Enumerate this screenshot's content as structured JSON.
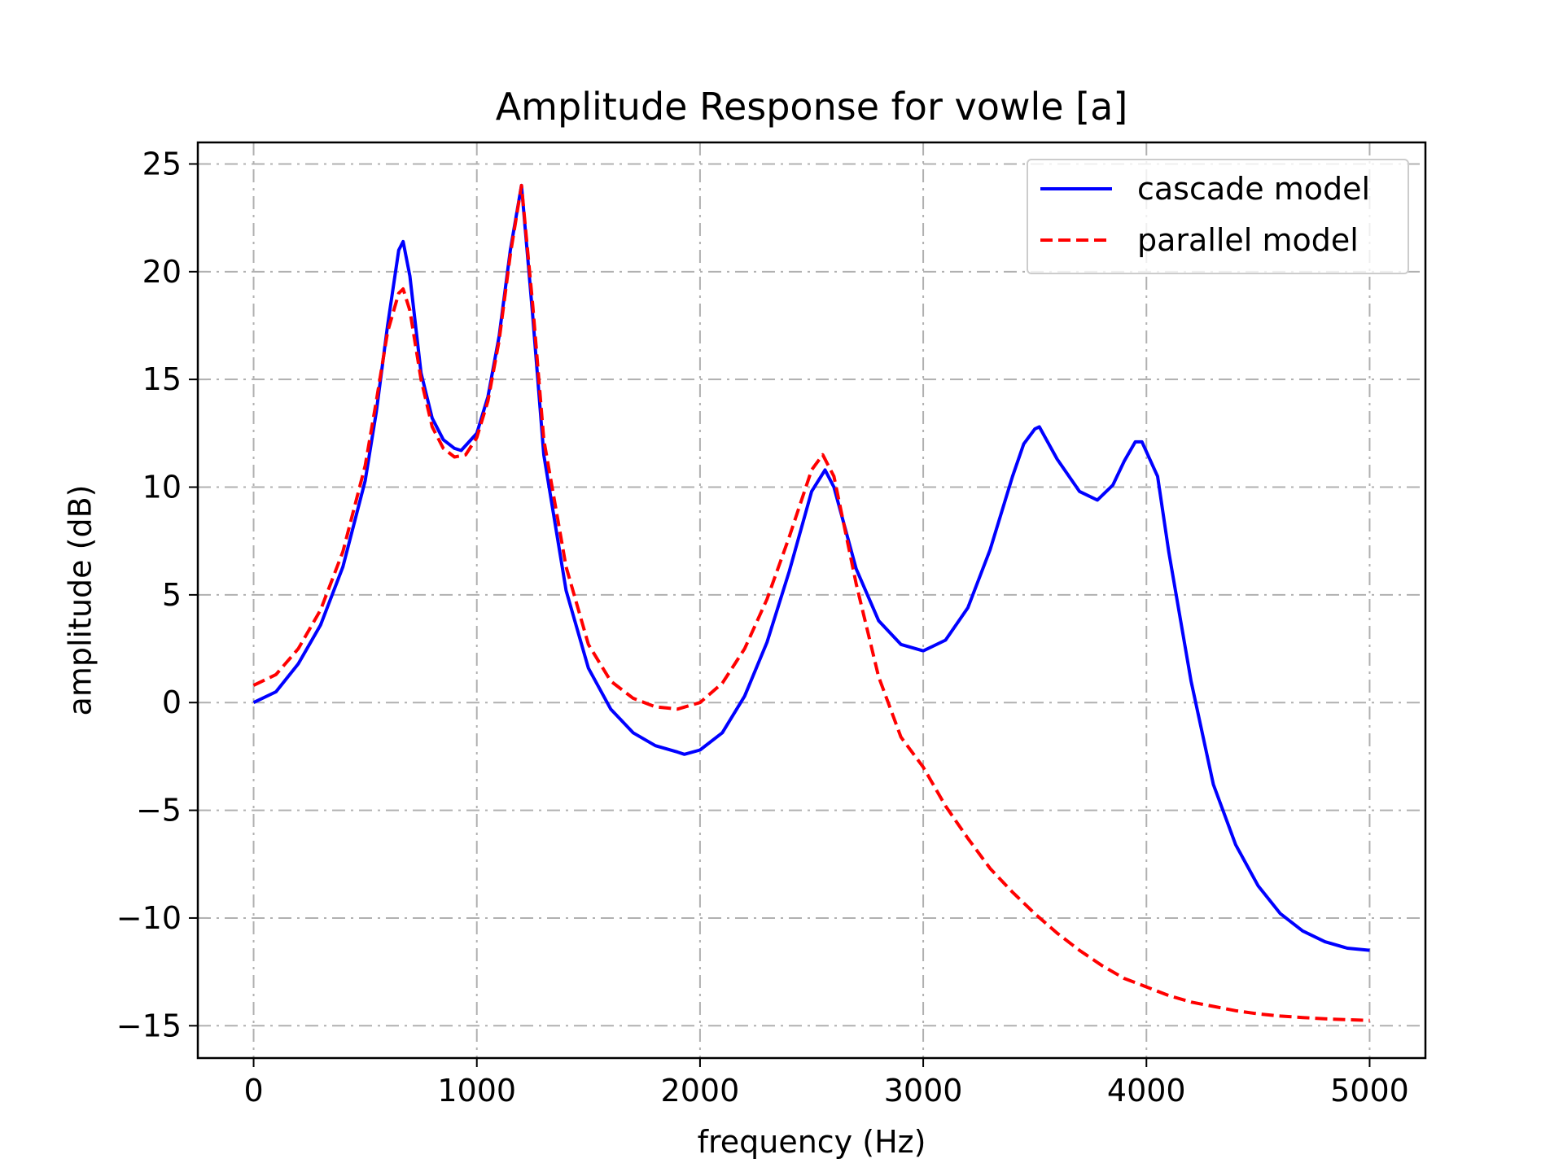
{
  "chart_data": {
    "type": "line",
    "title": "Amplitude Response for vowle [a]",
    "xlabel": "frequency (Hz)",
    "ylabel": "amplitude (dB)",
    "xlim": [
      -250,
      5250
    ],
    "ylim": [
      -16.5,
      26
    ],
    "xticks": [
      0,
      1000,
      2000,
      3000,
      4000,
      5000
    ],
    "xtick_labels": [
      "0",
      "1000",
      "2000",
      "3000",
      "4000",
      "5000"
    ],
    "yticks": [
      -15,
      -10,
      -5,
      0,
      5,
      10,
      15,
      20,
      25
    ],
    "ytick_labels": [
      "−15",
      "−10",
      "−5",
      "0",
      "5",
      "10",
      "15",
      "20",
      "25"
    ],
    "grid": true,
    "grid_style": "dashdot",
    "legend_position": "upper right",
    "series": [
      {
        "name": "cascade model",
        "color": "#0000ff",
        "style": "solid",
        "x": [
          0,
          100,
          200,
          300,
          400,
          500,
          550,
          600,
          650,
          670,
          700,
          750,
          800,
          850,
          900,
          930,
          1000,
          1050,
          1100,
          1150,
          1200,
          1250,
          1300,
          1400,
          1500,
          1600,
          1700,
          1800,
          1900,
          1930,
          2000,
          2100,
          2200,
          2300,
          2400,
          2500,
          2560,
          2600,
          2700,
          2800,
          2900,
          3000,
          3100,
          3200,
          3300,
          3400,
          3450,
          3500,
          3520,
          3600,
          3700,
          3780,
          3850,
          3900,
          3950,
          3980,
          4050,
          4100,
          4200,
          4300,
          4400,
          4500,
          4600,
          4700,
          4800,
          4900,
          5000
        ],
        "y": [
          0,
          0.5,
          1.8,
          3.6,
          6.3,
          10.3,
          13.5,
          17.5,
          21.0,
          21.4,
          19.8,
          15.3,
          13.2,
          12.2,
          11.8,
          11.7,
          12.5,
          14.2,
          17.0,
          21.0,
          24.0,
          18.0,
          11.5,
          5.2,
          1.6,
          -0.3,
          -1.4,
          -2.0,
          -2.3,
          -2.4,
          -2.2,
          -1.4,
          0.3,
          2.8,
          6.1,
          9.8,
          10.8,
          10.0,
          6.2,
          3.8,
          2.7,
          2.4,
          2.9,
          4.4,
          7.1,
          10.5,
          12.0,
          12.7,
          12.8,
          11.3,
          9.8,
          9.4,
          10.1,
          11.2,
          12.1,
          12.1,
          10.5,
          7.0,
          1.0,
          -3.8,
          -6.6,
          -8.5,
          -9.8,
          -10.6,
          -11.1,
          -11.4,
          -11.5
        ]
      },
      {
        "name": "parallel model",
        "color": "#ff0000",
        "style": "dashed",
        "x": [
          0,
          100,
          200,
          300,
          400,
          500,
          550,
          600,
          650,
          670,
          700,
          750,
          800,
          850,
          900,
          950,
          1000,
          1050,
          1100,
          1150,
          1200,
          1250,
          1300,
          1400,
          1500,
          1600,
          1700,
          1800,
          1900,
          2000,
          2100,
          2200,
          2300,
          2400,
          2500,
          2550,
          2600,
          2700,
          2800,
          2900,
          3000,
          3100,
          3200,
          3300,
          3400,
          3500,
          3600,
          3700,
          3800,
          3900,
          4000,
          4100,
          4200,
          4300,
          4400,
          4500,
          4600,
          4700,
          4800,
          4900,
          5000
        ],
        "y": [
          0.8,
          1.3,
          2.5,
          4.3,
          7.0,
          11.0,
          14.0,
          17.2,
          19.0,
          19.2,
          18.2,
          15.0,
          12.8,
          11.8,
          11.4,
          11.5,
          12.3,
          14.0,
          16.8,
          20.8,
          24.0,
          18.5,
          12.2,
          6.3,
          2.7,
          1.0,
          0.2,
          -0.2,
          -0.3,
          0.0,
          0.9,
          2.5,
          4.8,
          7.7,
          10.8,
          11.5,
          10.5,
          5.5,
          1.2,
          -1.6,
          -3.0,
          -4.8,
          -6.3,
          -7.7,
          -8.8,
          -9.8,
          -10.7,
          -11.5,
          -12.2,
          -12.8,
          -13.2,
          -13.6,
          -13.9,
          -14.1,
          -14.3,
          -14.45,
          -14.55,
          -14.62,
          -14.68,
          -14.72,
          -14.75
        ]
      }
    ]
  }
}
